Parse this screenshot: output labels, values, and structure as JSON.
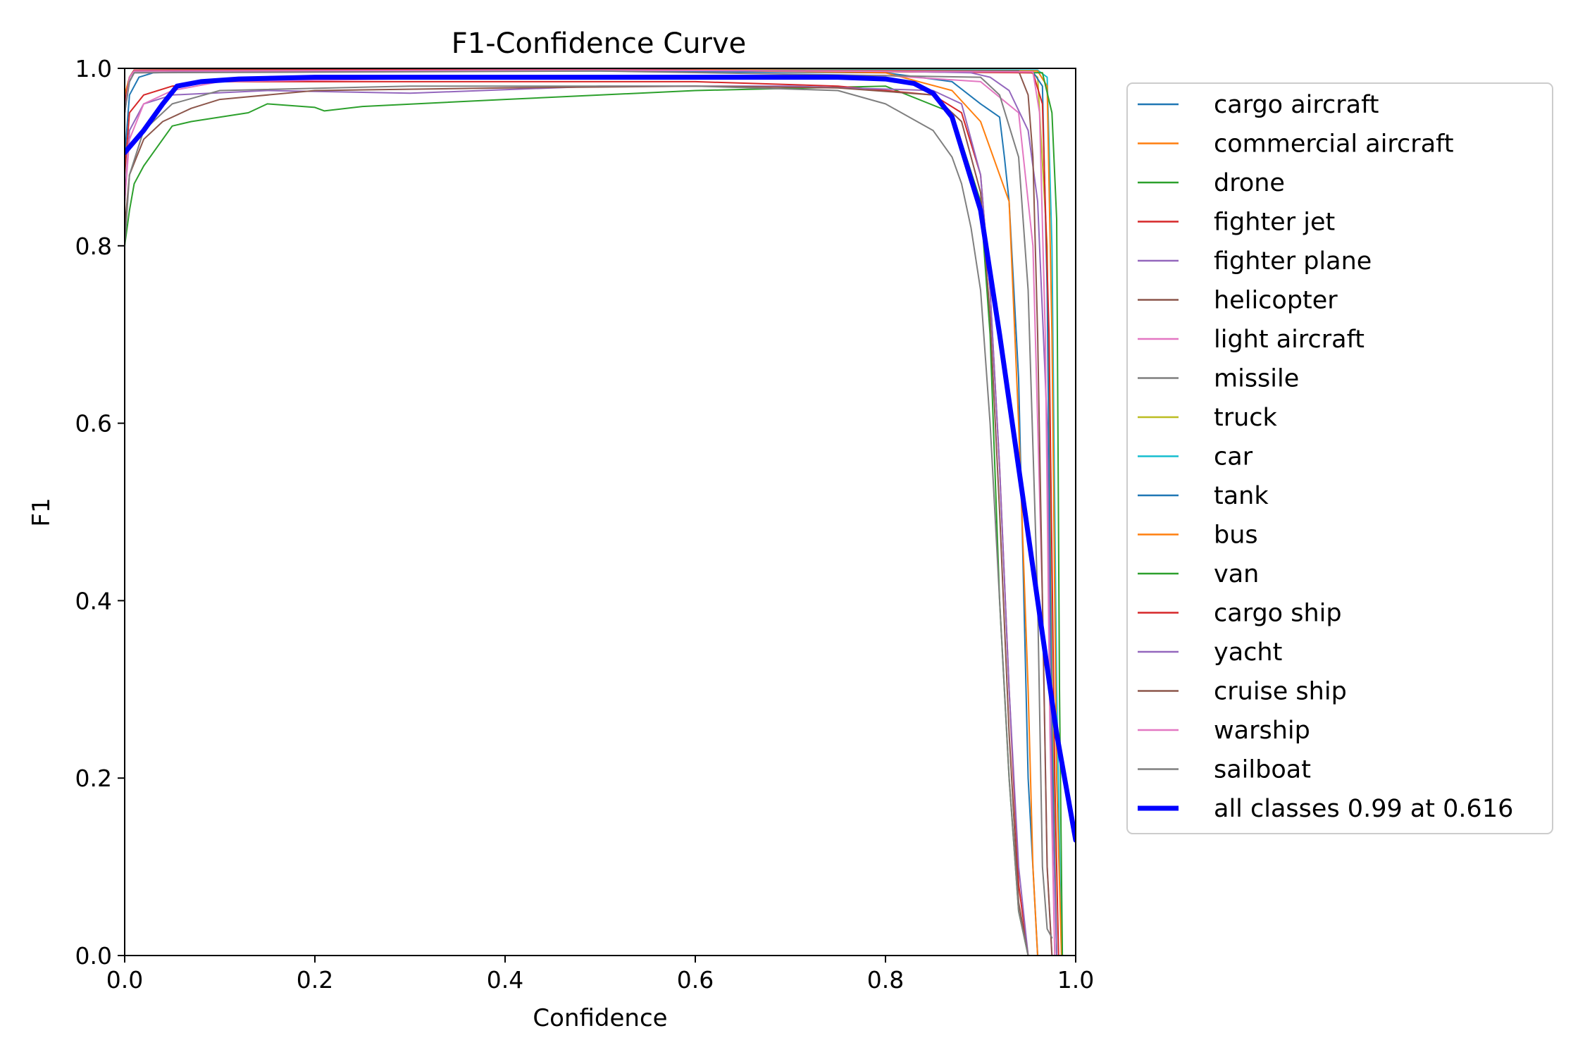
{
  "chart_data": {
    "type": "line",
    "title": "F1-Confidence Curve",
    "xlabel": "Confidence",
    "ylabel": "F1",
    "xlim": [
      0.0,
      1.0
    ],
    "ylim": [
      0.0,
      1.0
    ],
    "xticks": [
      "0.0",
      "0.2",
      "0.4",
      "0.6",
      "0.8",
      "1.0"
    ],
    "yticks": [
      "0.0",
      "0.2",
      "0.4",
      "0.6",
      "0.8",
      "1.0"
    ],
    "grid": false,
    "legend_position": "outside-right",
    "series": [
      {
        "name": "cargo aircraft",
        "color": "#1f77b4",
        "width": 2,
        "x": [
          0,
          0.005,
          0.015,
          0.03,
          0.1,
          0.5,
          0.8,
          0.87,
          0.9,
          0.92,
          0.925,
          0.93,
          0.94,
          0.95,
          0.96
        ],
        "y": [
          0.9,
          0.97,
          0.99,
          0.995,
          0.997,
          0.997,
          0.995,
          0.985,
          0.96,
          0.945,
          0.9,
          0.85,
          0.65,
          0.2,
          0.0
        ]
      },
      {
        "name": "commercial aircraft",
        "color": "#ff7f0e",
        "width": 2,
        "x": [
          0,
          0.005,
          0.01,
          0.3,
          0.6,
          0.8,
          0.87,
          0.9,
          0.93,
          0.94,
          0.95,
          0.955,
          0.96
        ],
        "y": [
          0.97,
          0.99,
          0.997,
          0.998,
          0.998,
          0.995,
          0.975,
          0.94,
          0.85,
          0.6,
          0.3,
          0.1,
          0.0
        ]
      },
      {
        "name": "drone",
        "color": "#2ca02c",
        "width": 2,
        "x": [
          0,
          0.005,
          0.01,
          0.02,
          0.03,
          0.04,
          0.05,
          0.07,
          0.1,
          0.13,
          0.15,
          0.2,
          0.21,
          0.25,
          0.4,
          0.6,
          0.8,
          0.87,
          0.9,
          0.91,
          0.92,
          0.93,
          0.94,
          0.95
        ],
        "y": [
          0.8,
          0.84,
          0.87,
          0.89,
          0.905,
          0.92,
          0.935,
          0.94,
          0.945,
          0.95,
          0.96,
          0.956,
          0.952,
          0.957,
          0.965,
          0.975,
          0.98,
          0.95,
          0.85,
          0.7,
          0.4,
          0.2,
          0.05,
          0.0
        ]
      },
      {
        "name": "fighter jet",
        "color": "#d62728",
        "width": 2,
        "x": [
          0,
          0.005,
          0.02,
          0.05,
          0.1,
          0.3,
          0.6,
          0.75,
          0.85,
          0.88,
          0.9,
          0.91,
          0.92,
          0.93,
          0.94,
          0.95
        ],
        "y": [
          0.88,
          0.95,
          0.97,
          0.98,
          0.985,
          0.985,
          0.985,
          0.98,
          0.97,
          0.95,
          0.88,
          0.75,
          0.55,
          0.3,
          0.08,
          0.0
        ]
      },
      {
        "name": "fighter plane",
        "color": "#9467bd",
        "width": 2,
        "x": [
          0,
          0.005,
          0.02,
          0.05,
          0.15,
          0.3,
          0.5,
          0.7,
          0.85,
          0.88,
          0.9,
          0.91,
          0.92,
          0.93,
          0.94,
          0.95
        ],
        "y": [
          0.85,
          0.93,
          0.96,
          0.97,
          0.975,
          0.972,
          0.98,
          0.98,
          0.975,
          0.96,
          0.88,
          0.75,
          0.55,
          0.3,
          0.1,
          0.0
        ]
      },
      {
        "name": "helicopter",
        "color": "#8c564b",
        "width": 2,
        "x": [
          0,
          0.005,
          0.02,
          0.04,
          0.07,
          0.1,
          0.2,
          0.4,
          0.6,
          0.75,
          0.85,
          0.88,
          0.9,
          0.91,
          0.92,
          0.93,
          0.94,
          0.95
        ],
        "y": [
          0.82,
          0.88,
          0.92,
          0.94,
          0.955,
          0.965,
          0.975,
          0.978,
          0.98,
          0.978,
          0.97,
          0.94,
          0.86,
          0.72,
          0.5,
          0.25,
          0.06,
          0.0
        ]
      },
      {
        "name": "light aircraft",
        "color": "#e377c2",
        "width": 2,
        "x": [
          0,
          0.005,
          0.02,
          0.05,
          0.1,
          0.4,
          0.8,
          0.9,
          0.94,
          0.955,
          0.965,
          0.97,
          0.975
        ],
        "y": [
          0.85,
          0.92,
          0.96,
          0.975,
          0.985,
          0.99,
          0.992,
          0.985,
          0.95,
          0.8,
          0.4,
          0.1,
          0.0
        ]
      },
      {
        "name": "missile",
        "color": "#7f7f7f",
        "width": 2,
        "x": [
          0,
          0.005,
          0.02,
          0.05,
          0.1,
          0.3,
          0.6,
          0.75,
          0.8,
          0.85,
          0.87,
          0.88,
          0.89,
          0.9,
          0.91,
          0.92,
          0.93,
          0.94,
          0.95
        ],
        "y": [
          0.8,
          0.88,
          0.93,
          0.96,
          0.975,
          0.98,
          0.98,
          0.975,
          0.96,
          0.93,
          0.9,
          0.87,
          0.82,
          0.75,
          0.6,
          0.4,
          0.2,
          0.05,
          0.0
        ]
      },
      {
        "name": "truck",
        "color": "#bcbd22",
        "width": 2,
        "x": [
          0,
          0.005,
          0.01,
          0.5,
          0.95,
          0.96,
          0.97,
          0.975,
          0.98
        ],
        "y": [
          0.95,
          0.99,
          0.998,
          0.999,
          0.998,
          0.99,
          0.8,
          0.3,
          0.0
        ]
      },
      {
        "name": "car",
        "color": "#17becf",
        "width": 2,
        "x": [
          0,
          0.005,
          0.01,
          0.5,
          0.96,
          0.97,
          0.975,
          0.98,
          0.985
        ],
        "y": [
          0.95,
          0.99,
          0.998,
          0.999,
          0.998,
          0.99,
          0.8,
          0.3,
          0.0
        ]
      },
      {
        "name": "tank",
        "color": "#1f77b4",
        "width": 2,
        "x": [
          0,
          0.005,
          0.01,
          0.5,
          0.955,
          0.965,
          0.97,
          0.975,
          0.98
        ],
        "y": [
          0.96,
          0.99,
          0.997,
          0.998,
          0.996,
          0.98,
          0.75,
          0.25,
          0.0
        ]
      },
      {
        "name": "bus",
        "color": "#ff7f0e",
        "width": 2,
        "x": [
          0,
          0.005,
          0.01,
          0.5,
          0.96,
          0.97,
          0.975,
          0.98,
          0.985
        ],
        "y": [
          0.96,
          0.99,
          0.998,
          0.999,
          0.997,
          0.98,
          0.7,
          0.2,
          0.0
        ]
      },
      {
        "name": "van",
        "color": "#2ca02c",
        "width": 2,
        "x": [
          0,
          0.005,
          0.01,
          0.5,
          0.965,
          0.975,
          0.98,
          0.983,
          0.986
        ],
        "y": [
          0.96,
          0.99,
          0.998,
          0.999,
          0.995,
          0.95,
          0.83,
          0.3,
          0.0
        ]
      },
      {
        "name": "cargo ship",
        "color": "#d62728",
        "width": 2,
        "x": [
          0,
          0.005,
          0.01,
          0.5,
          0.955,
          0.965,
          0.972,
          0.978,
          0.982
        ],
        "y": [
          0.96,
          0.99,
          0.998,
          0.999,
          0.995,
          0.96,
          0.7,
          0.2,
          0.0
        ]
      },
      {
        "name": "yacht",
        "color": "#9467bd",
        "width": 2,
        "x": [
          0,
          0.005,
          0.01,
          0.4,
          0.8,
          0.89,
          0.91,
          0.93,
          0.95,
          0.96,
          0.97,
          0.975,
          0.98
        ],
        "y": [
          0.95,
          0.985,
          0.995,
          0.998,
          0.997,
          0.995,
          0.99,
          0.975,
          0.93,
          0.85,
          0.6,
          0.2,
          0.0
        ]
      },
      {
        "name": "cruise ship",
        "color": "#8c564b",
        "width": 2,
        "x": [
          0,
          0.005,
          0.01,
          0.5,
          0.94,
          0.95,
          0.955,
          0.96,
          0.965,
          0.97,
          0.975
        ],
        "y": [
          0.95,
          0.99,
          0.997,
          0.998,
          0.997,
          0.97,
          0.9,
          0.7,
          0.4,
          0.1,
          0.0
        ]
      },
      {
        "name": "warship",
        "color": "#e377c2",
        "width": 2,
        "x": [
          0,
          0.005,
          0.01,
          0.5,
          0.955,
          0.962,
          0.968,
          0.973,
          0.978
        ],
        "y": [
          0.95,
          0.99,
          0.997,
          0.998,
          0.996,
          0.95,
          0.7,
          0.25,
          0.0
        ]
      },
      {
        "name": "sailboat",
        "color": "#7f7f7f",
        "width": 2,
        "x": [
          0,
          0.005,
          0.01,
          0.5,
          0.9,
          0.92,
          0.94,
          0.95,
          0.96,
          0.965,
          0.97,
          0.975
        ],
        "y": [
          0.95,
          0.985,
          0.995,
          0.997,
          0.99,
          0.97,
          0.9,
          0.75,
          0.4,
          0.1,
          0.03,
          0.02
        ]
      },
      {
        "name": "all classes 0.99 at 0.616",
        "color": "#0000ff",
        "width": 7,
        "x": [
          0,
          0.02,
          0.04,
          0.055,
          0.08,
          0.12,
          0.2,
          0.4,
          0.616,
          0.75,
          0.8,
          0.83,
          0.85,
          0.87,
          0.88,
          0.9,
          0.92,
          0.94,
          0.96,
          0.98,
          1.0
        ],
        "y": [
          0.905,
          0.93,
          0.96,
          0.98,
          0.985,
          0.988,
          0.99,
          0.99,
          0.99,
          0.99,
          0.988,
          0.983,
          0.972,
          0.945,
          0.91,
          0.84,
          0.7,
          0.55,
          0.4,
          0.25,
          0.13
        ]
      }
    ]
  }
}
